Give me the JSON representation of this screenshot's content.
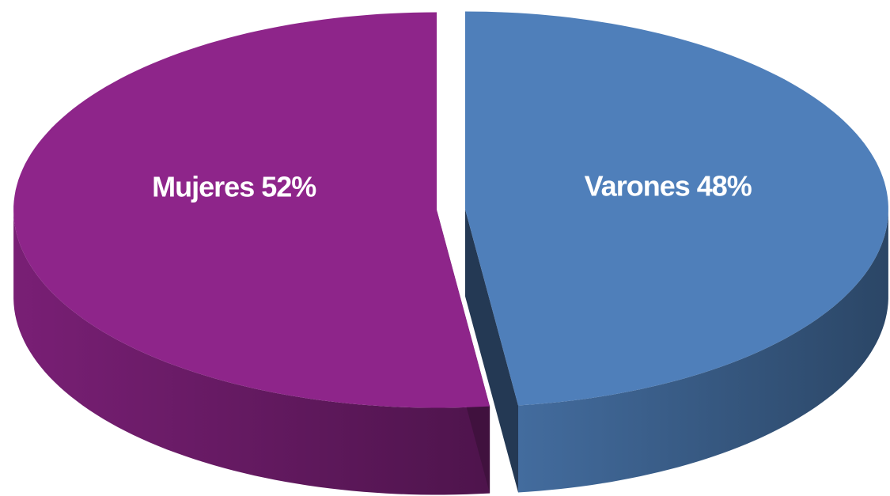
{
  "chart_data": {
    "type": "pie",
    "categories": [
      "Mujeres",
      "Varones"
    ],
    "values": [
      52,
      48
    ],
    "value_labels": [
      "52%",
      "48%"
    ],
    "colors": [
      "#8e258a",
      "#4f7fba"
    ]
  }
}
